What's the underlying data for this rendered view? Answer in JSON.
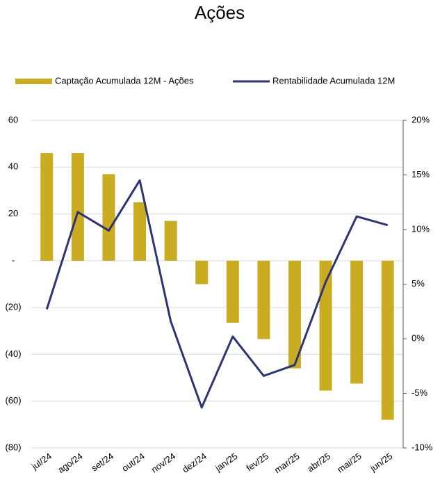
{
  "chart_data": {
    "type": "bar",
    "title": "Ações",
    "categories": [
      "jul/24",
      "ago/24",
      "set/24",
      "out/24",
      "nov/24",
      "dez/24",
      "jan/25",
      "fev/25",
      "mar/25",
      "abr/25",
      "mai/25",
      "jun/25"
    ],
    "series": [
      {
        "name": "Captação Acumulada 12M - Ações",
        "type": "bar",
        "color": "#c9ac22",
        "values": [
          46,
          46,
          37,
          25,
          17,
          -10,
          -26.5,
          -33.5,
          -46,
          -55.5,
          -52.5,
          -68
        ]
      },
      {
        "name": "Rentabilidade Acumulada 12M",
        "type": "line",
        "axis": "y2",
        "color": "#2e3472",
        "values": [
          2.7,
          11.6,
          9.9,
          14.5,
          1.6,
          -6.3,
          0.2,
          -3.4,
          -2.4,
          5.2,
          11.2,
          10.4
        ]
      }
    ],
    "ylim": [
      -80,
      60
    ],
    "yticks": [
      60,
      40,
      20,
      {
        "value": 0,
        "label": "-"
      },
      {
        "value": -20,
        "label": "(20)"
      },
      {
        "value": -40,
        "label": "(40)"
      },
      {
        "value": -60,
        "label": "(60)"
      },
      {
        "value": -80,
        "label": "(80)"
      }
    ],
    "y2lim": [
      -10,
      20
    ],
    "y2ticks": [
      {
        "value": 20,
        "label": "20%"
      },
      {
        "value": 15,
        "label": "15%"
      },
      {
        "value": 10,
        "label": "10%"
      },
      {
        "value": 5,
        "label": "5%"
      },
      {
        "value": 0,
        "label": "0%"
      },
      {
        "value": -5,
        "label": "-5%"
      },
      {
        "value": -10,
        "label": "-10%"
      }
    ],
    "grid": true,
    "legend": "top"
  }
}
